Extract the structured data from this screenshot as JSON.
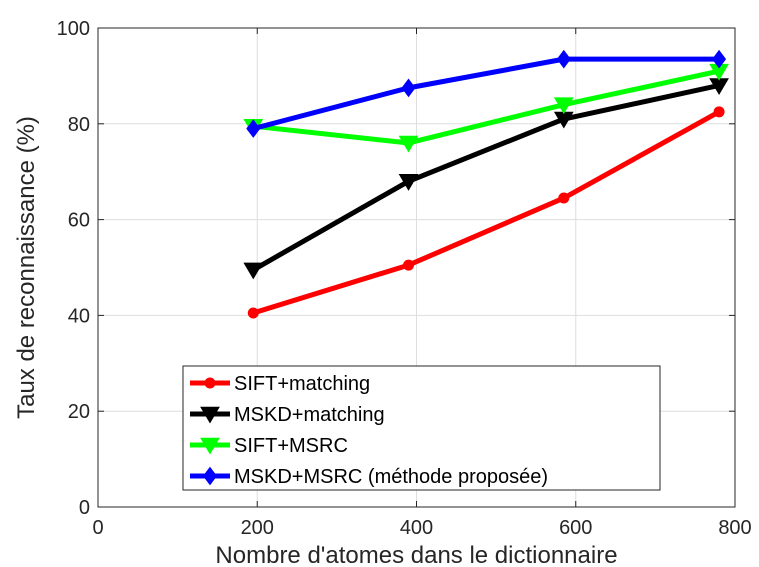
{
  "chart_data": {
    "type": "line",
    "x": [
      195,
      390,
      585,
      780
    ],
    "xlabel": "Nombre d'atomes dans le dictionnaire",
    "ylabel": "Taux de reconnaissance (%)",
    "xlim": [
      0,
      800
    ],
    "ylim": [
      0,
      100
    ],
    "xticks": [
      0,
      200,
      400,
      600,
      800
    ],
    "yticks": [
      0,
      20,
      40,
      60,
      80,
      100
    ],
    "grid": true,
    "legend_position": "bottom-center",
    "series": [
      {
        "name": "SIFT+matching",
        "values": [
          40.5,
          50.5,
          64.5,
          82.5
        ],
        "color": "#ff0000",
        "marker": "circle"
      },
      {
        "name": "MSKD+matching",
        "values": [
          49.5,
          68.0,
          81.0,
          88.0
        ],
        "color": "#000000",
        "marker": "triangle-down"
      },
      {
        "name": "SIFT+MSRC",
        "values": [
          79.5,
          76.0,
          84.0,
          91.0
        ],
        "color": "#00ff00",
        "marker": "triangle-down"
      },
      {
        "name": "MSKD+MSRC (méthode proposée)",
        "values": [
          79.0,
          87.5,
          93.5,
          93.5
        ],
        "color": "#0000ff",
        "marker": "diamond"
      }
    ]
  }
}
